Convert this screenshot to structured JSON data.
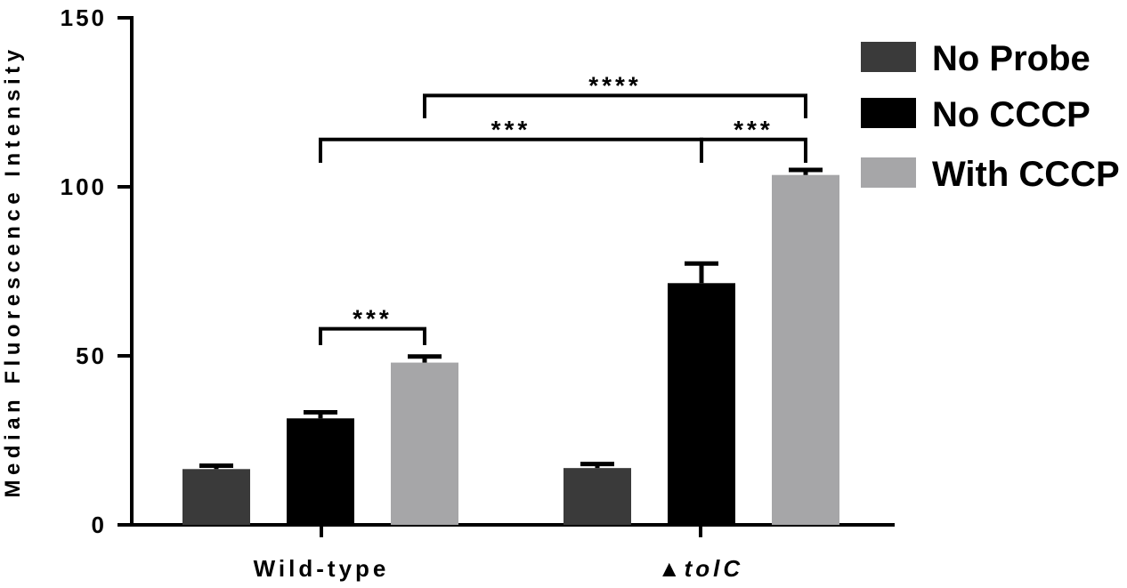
{
  "chart_data": {
    "type": "bar",
    "ylabel": "Median Fluorescence Intensity",
    "ylim": [
      0,
      150
    ],
    "yticks": [
      "0",
      "50",
      "100",
      "150"
    ],
    "categories": [
      {
        "label": "Wild-type",
        "prefix": ""
      },
      {
        "label": "tolC",
        "prefix": "▲"
      }
    ],
    "series": [
      {
        "name": "No Probe",
        "color": "#3a3a3a",
        "values": [
          16.5,
          16.8
        ],
        "errors": [
          1.0,
          1.2
        ]
      },
      {
        "name": "No CCCP",
        "color": "#000000",
        "values": [
          31.5,
          71.5
        ],
        "errors": [
          1.8,
          5.8
        ]
      },
      {
        "name": "With CCCP",
        "color": "#a6a6a8",
        "values": [
          48,
          103.5
        ],
        "errors": [
          1.8,
          1.5
        ]
      }
    ],
    "significance": [
      {
        "label": "***",
        "from": {
          "category": 0,
          "series": 1
        },
        "to": {
          "category": 0,
          "series": 2
        },
        "y": 58
      },
      {
        "label": "***",
        "from": {
          "category": 0,
          "series": 1
        },
        "to": {
          "category": 1,
          "series": 1
        },
        "y": 114
      },
      {
        "label": "***",
        "from": {
          "category": 1,
          "series": 1
        },
        "to": {
          "category": 1,
          "series": 2
        },
        "y": 114
      },
      {
        "label": "****",
        "from": {
          "category": 0,
          "series": 2
        },
        "to": {
          "category": 1,
          "series": 2
        },
        "y": 127
      }
    ],
    "legend_position": "top-right"
  }
}
